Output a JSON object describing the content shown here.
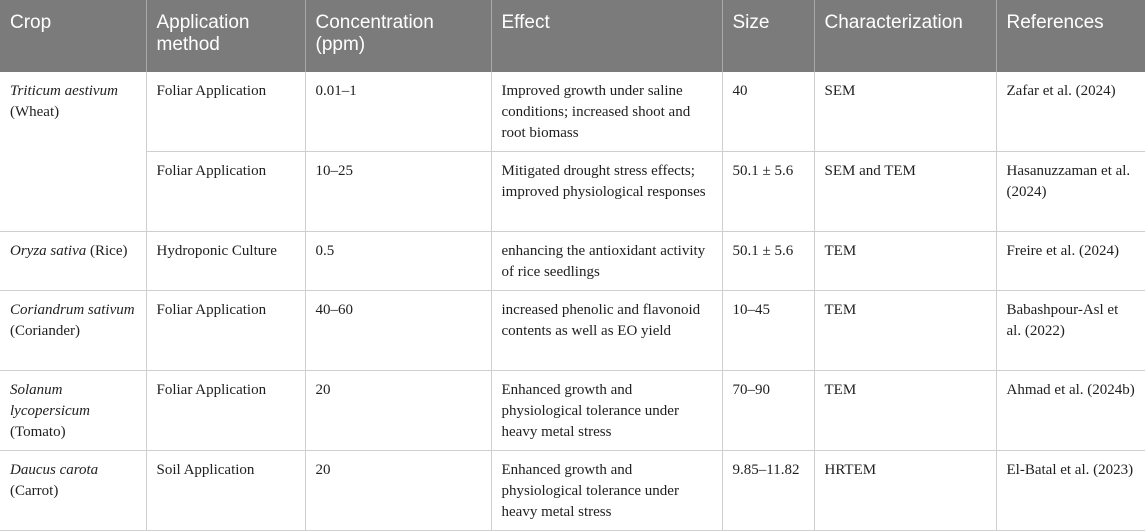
{
  "headers": {
    "crop": "Crop",
    "application_method": "Application method",
    "concentration": "Concentration (ppm)",
    "effect": "Effect",
    "size": "Size",
    "characterization": "Characterization",
    "references": "References"
  },
  "rows": [
    {
      "crop_sci": "Triticum aestivum",
      "crop_common": " (Wheat)",
      "method": "Foliar Application",
      "concentration": "0.01–1",
      "effect": "Improved growth under saline conditions; increased shoot and root biomass",
      "size": "40",
      "characterization": "SEM",
      "reference": "Zafar et al. (2024)"
    },
    {
      "method": "Foliar Application",
      "concentration": "10–25",
      "effect": "Mitigated drought stress effects; improved physiological responses",
      "size": "50.1 ± 5.6",
      "characterization": "SEM and TEM",
      "reference": "Hasanuzzaman et al. (2024)"
    },
    {
      "crop_sci": "Oryza sativa",
      "crop_common": " (Rice)",
      "method": "Hydroponic Culture",
      "concentration": "0.5",
      "effect": "enhancing the antioxidant activity of rice seedlings",
      "size": "50.1 ± 5.6",
      "characterization": "TEM",
      "reference": "Freire et al. (2024)"
    },
    {
      "crop_sci": "Coriandrum sativum",
      "crop_common": " (Coriander)",
      "method": "Foliar Application",
      "concentration": "40–60",
      "effect": "increased phenolic and flavonoid contents as well as EO yield",
      "size": "10–45",
      "characterization": "TEM",
      "reference": "Babashpour-Asl et al. (2022)"
    },
    {
      "crop_sci": "Solanum lycopersicum",
      "crop_common": " (Tomato)",
      "method": "Foliar Application",
      "concentration": "20",
      "effect": "Enhanced growth and physiological tolerance under heavy metal stress",
      "size": "70–90",
      "characterization": "TEM",
      "reference": "Ahmad et al. (2024b)"
    },
    {
      "crop_sci": "Daucus carota",
      "crop_common": " (Carrot)",
      "method": "Soil Application",
      "concentration": "20",
      "effect": "Enhanced growth and physiological tolerance under heavy metal stress",
      "size": "9.85–11.82",
      "characterization": "HRTEM",
      "reference": "El-Batal et al. (2023)"
    }
  ]
}
